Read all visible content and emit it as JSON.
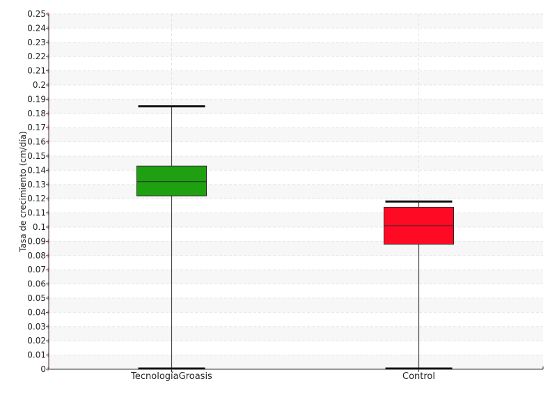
{
  "chart_data": {
    "type": "box",
    "title": "",
    "xlabel": "",
    "ylabel": "Tasa de crecimiento (cm/día)",
    "ylim": [
      0,
      0.25
    ],
    "yticks": [
      "0",
      "0.01",
      "0.02",
      "0.03",
      "0.04",
      "0.05",
      "0.06",
      "0.07",
      "0.08",
      "0.09",
      "0.1",
      "0.11",
      "0.12",
      "0.13",
      "0.14",
      "0.15",
      "0.16",
      "0.17",
      "0.18",
      "0.19",
      "0.2",
      "0.21",
      "0.22",
      "0.23",
      "0.24",
      "0.25"
    ],
    "ytick_values": [
      0,
      0.01,
      0.02,
      0.03,
      0.04,
      0.05,
      0.06,
      0.07,
      0.08,
      0.09,
      0.1,
      0.11,
      0.12,
      0.13,
      0.14,
      0.15,
      0.16,
      0.17,
      0.18,
      0.19,
      0.2,
      0.21,
      0.22,
      0.23,
      0.24,
      0.25
    ],
    "grid": true,
    "categories": [
      "TecnologíaGroasis",
      "Control"
    ],
    "boxes": [
      {
        "category": "TecnologíaGroasis",
        "min": 0.0,
        "q1": 0.122,
        "median": 0.132,
        "q3": 0.143,
        "max": 0.185,
        "color": "#1fa010"
      },
      {
        "category": "Control",
        "min": 0.0,
        "q1": 0.088,
        "median": 0.101,
        "q3": 0.114,
        "max": 0.118,
        "color": "#ff0a25"
      }
    ]
  }
}
